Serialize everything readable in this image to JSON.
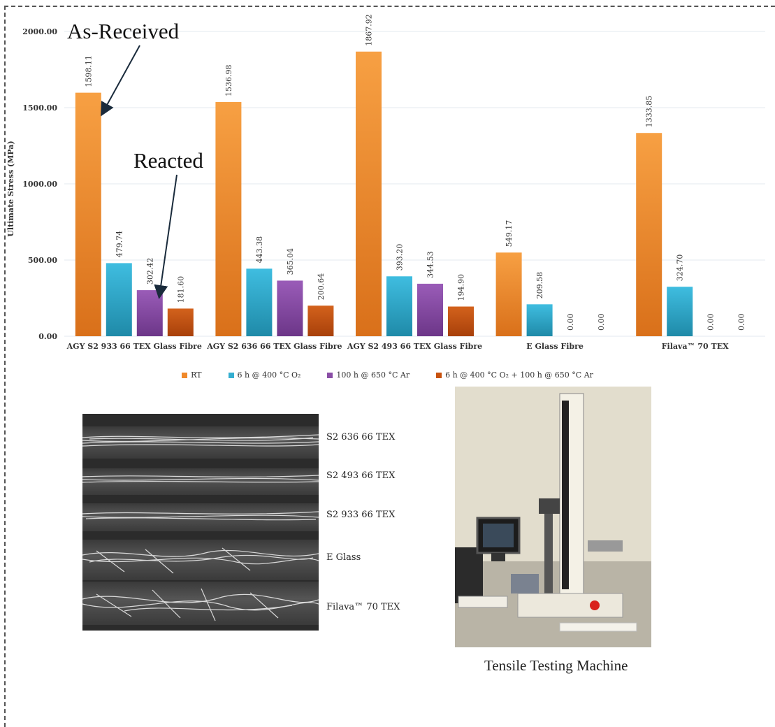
{
  "chart_data": {
    "type": "bar",
    "ylabel": "Ultimate Stress (MPa)",
    "ylim": [
      0,
      2000
    ],
    "yticks": [
      "0.00",
      "500.00",
      "1000.00",
      "1500.00",
      "2000.00"
    ],
    "grid": true,
    "legend_position": "bottom",
    "categories": [
      "AGY S2 933 66 TEX Glass Fibre",
      "AGY S2 636 66 TEX Glass Fibre",
      "AGY S2 493 66 TEX Glass Fibre",
      "E Glass Fibre",
      "Filava™ 70 TEX"
    ],
    "series": [
      {
        "name": "RT",
        "color": "#f0892a",
        "values": [
          1598.11,
          1536.98,
          1867.92,
          549.17,
          1333.85
        ],
        "labels": [
          "1598.11",
          "1536.98",
          "1867.92",
          "549.17",
          "1333.85"
        ]
      },
      {
        "name": "6 h @ 400 °C O₂",
        "color": "#34aed0",
        "values": [
          479.74,
          443.38,
          393.2,
          209.58,
          324.7
        ],
        "labels": [
          "479.74",
          "443.38",
          "393.20",
          "209.58",
          "324.70"
        ]
      },
      {
        "name": "100 h @ 650 °C Ar",
        "color": "#8a4ea6",
        "values": [
          302.42,
          365.04,
          344.53,
          0,
          0
        ],
        "labels": [
          "302.42",
          "365.04",
          "344.53",
          "0.00",
          "0.00"
        ]
      },
      {
        "name": "6 h @ 400 °C O₂ + 100 h @ 650 °C Ar",
        "color": "#c8520e",
        "values": [
          181.6,
          200.64,
          194.9,
          0,
          0
        ],
        "labels": [
          "181.60",
          "200.64",
          "194.90",
          "0.00",
          "0.00"
        ]
      }
    ],
    "annotations": [
      {
        "text": "As-Received"
      },
      {
        "text": "Reacted"
      }
    ]
  },
  "strand_photo": {
    "labels": [
      "S2 636 66 TEX",
      "S2 493 66 TEX",
      "S2 933 66 TEX",
      "E Glass",
      "Filava™ 70 TEX"
    ]
  },
  "machine_photo": {
    "caption": "Tensile Testing Machine"
  }
}
